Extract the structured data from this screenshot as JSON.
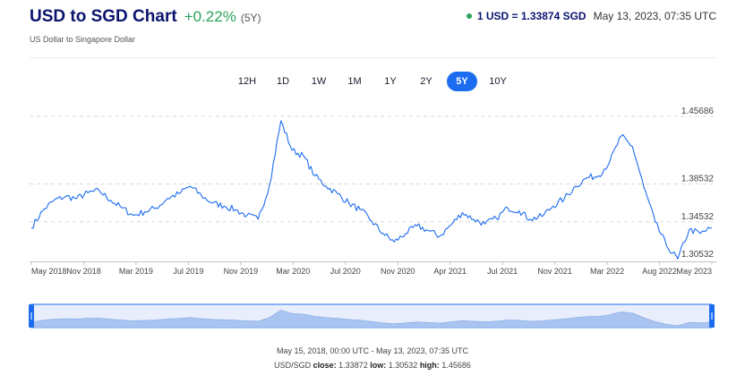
{
  "header": {
    "title": "USD to SGD Chart",
    "change": "+0.22%",
    "period": "(5Y)",
    "subtitle": "US Dollar to Singapore Dollar",
    "rate": "1 USD = 1.33874 SGD",
    "timestamp": "May 13, 2023, 07:35 UTC",
    "live_color": "#2aa35a"
  },
  "ranges": [
    {
      "label": "12H",
      "active": false
    },
    {
      "label": "1D",
      "active": false
    },
    {
      "label": "1W",
      "active": false
    },
    {
      "label": "1M",
      "active": false
    },
    {
      "label": "1Y",
      "active": false
    },
    {
      "label": "2Y",
      "active": false
    },
    {
      "label": "5Y",
      "active": true
    },
    {
      "label": "10Y",
      "active": false
    }
  ],
  "footer": {
    "range": "May 15, 2018, 00:00 UTC - May 13, 2023, 07:35 UTC",
    "pair": "USD/SGD",
    "close_label": "close:",
    "close_value": "1.33872",
    "low_label": "low:",
    "low_value": "1.30532",
    "high_label": "high:",
    "high_value": "1.45686"
  },
  "chart_data": {
    "type": "line",
    "line_color": "#1c6cf0",
    "ylim": [
      1.30532,
      1.45686
    ],
    "yticks": [
      "1.45686",
      "1.38532",
      "1.34532",
      "1.30532"
    ],
    "xticks": [
      "May 2018",
      "Nov 2018",
      "Mar 2019",
      "Jul 2019",
      "Nov 2019",
      "Mar 2020",
      "Jul 2020",
      "Nov 2020",
      "Apr 2021",
      "Jul 2021",
      "Nov 2021",
      "Mar 2022",
      "Aug 2022",
      "May 2023"
    ],
    "x": [
      "2018-05",
      "2018-06",
      "2018-07",
      "2018-08",
      "2018-09",
      "2018-10",
      "2018-11",
      "2018-12",
      "2019-01",
      "2019-02",
      "2019-03",
      "2019-04",
      "2019-05",
      "2019-06",
      "2019-07",
      "2019-08",
      "2019-09",
      "2019-10",
      "2019-11",
      "2019-12",
      "2020-01",
      "2020-02",
      "2020-03",
      "2020-04",
      "2020-05",
      "2020-06",
      "2020-07",
      "2020-08",
      "2020-09",
      "2020-10",
      "2020-11",
      "2020-12",
      "2021-01",
      "2021-02",
      "2021-03",
      "2021-04",
      "2021-05",
      "2021-06",
      "2021-07",
      "2021-08",
      "2021-09",
      "2021-10",
      "2021-11",
      "2021-12",
      "2022-01",
      "2022-02",
      "2022-03",
      "2022-04",
      "2022-05",
      "2022-06",
      "2022-07",
      "2022-08",
      "2022-09",
      "2022-10",
      "2022-11",
      "2022-12",
      "2023-01",
      "2023-02",
      "2023-03",
      "2023-04",
      "2023-05"
    ],
    "values": [
      1.339,
      1.357,
      1.368,
      1.372,
      1.37,
      1.376,
      1.378,
      1.368,
      1.36,
      1.352,
      1.356,
      1.36,
      1.37,
      1.375,
      1.383,
      1.373,
      1.365,
      1.362,
      1.358,
      1.352,
      1.348,
      1.384,
      1.452,
      1.421,
      1.415,
      1.394,
      1.383,
      1.375,
      1.365,
      1.358,
      1.346,
      1.333,
      1.324,
      1.333,
      1.341,
      1.336,
      1.33,
      1.342,
      1.355,
      1.348,
      1.343,
      1.349,
      1.36,
      1.357,
      1.348,
      1.351,
      1.362,
      1.37,
      1.383,
      1.392,
      1.394,
      1.409,
      1.436,
      1.425,
      1.382,
      1.345,
      1.32,
      1.306,
      1.337,
      1.333,
      1.339
    ],
    "navigator_color": "#a9c4f0"
  }
}
